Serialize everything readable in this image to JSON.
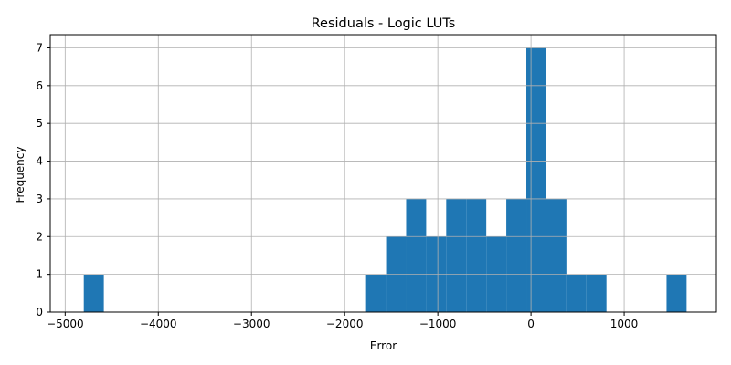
{
  "chart_data": {
    "type": "bar",
    "subtype": "histogram",
    "title": "Residuals - Logic LUTs",
    "xlabel": "Error",
    "ylabel": "Frequency",
    "xlim": [
      -5160,
      1990
    ],
    "ylim": [
      0,
      7.35
    ],
    "grid": true,
    "bar_color": "#1f77b4",
    "xticks": [
      -5000,
      -4000,
      -3000,
      -2000,
      -1000,
      0,
      1000
    ],
    "xtick_labels": [
      "−5000",
      "−4000",
      "−3000",
      "−2000",
      "−1000",
      "0",
      "1000"
    ],
    "yticks": [
      0,
      1,
      2,
      3,
      4,
      5,
      6,
      7
    ],
    "ytick_labels": [
      "0",
      "1",
      "2",
      "3",
      "4",
      "5",
      "6",
      "7"
    ],
    "bins": [
      {
        "x0": -4800,
        "x1": -4585,
        "count": 1
      },
      {
        "x0": -1770,
        "x1": -1555,
        "count": 1
      },
      {
        "x0": -1555,
        "x1": -1340,
        "count": 2
      },
      {
        "x0": -1340,
        "x1": -1125,
        "count": 3
      },
      {
        "x0": -1125,
        "x1": -910,
        "count": 2
      },
      {
        "x0": -910,
        "x1": -695,
        "count": 3
      },
      {
        "x0": -695,
        "x1": -480,
        "count": 3
      },
      {
        "x0": -480,
        "x1": -265,
        "count": 2
      },
      {
        "x0": -265,
        "x1": -50,
        "count": 3
      },
      {
        "x0": -50,
        "x1": 165,
        "count": 7
      },
      {
        "x0": 165,
        "x1": 380,
        "count": 3
      },
      {
        "x0": 380,
        "x1": 595,
        "count": 1
      },
      {
        "x0": 595,
        "x1": 810,
        "count": 1
      },
      {
        "x0": 1455,
        "x1": 1670,
        "count": 1
      }
    ]
  }
}
